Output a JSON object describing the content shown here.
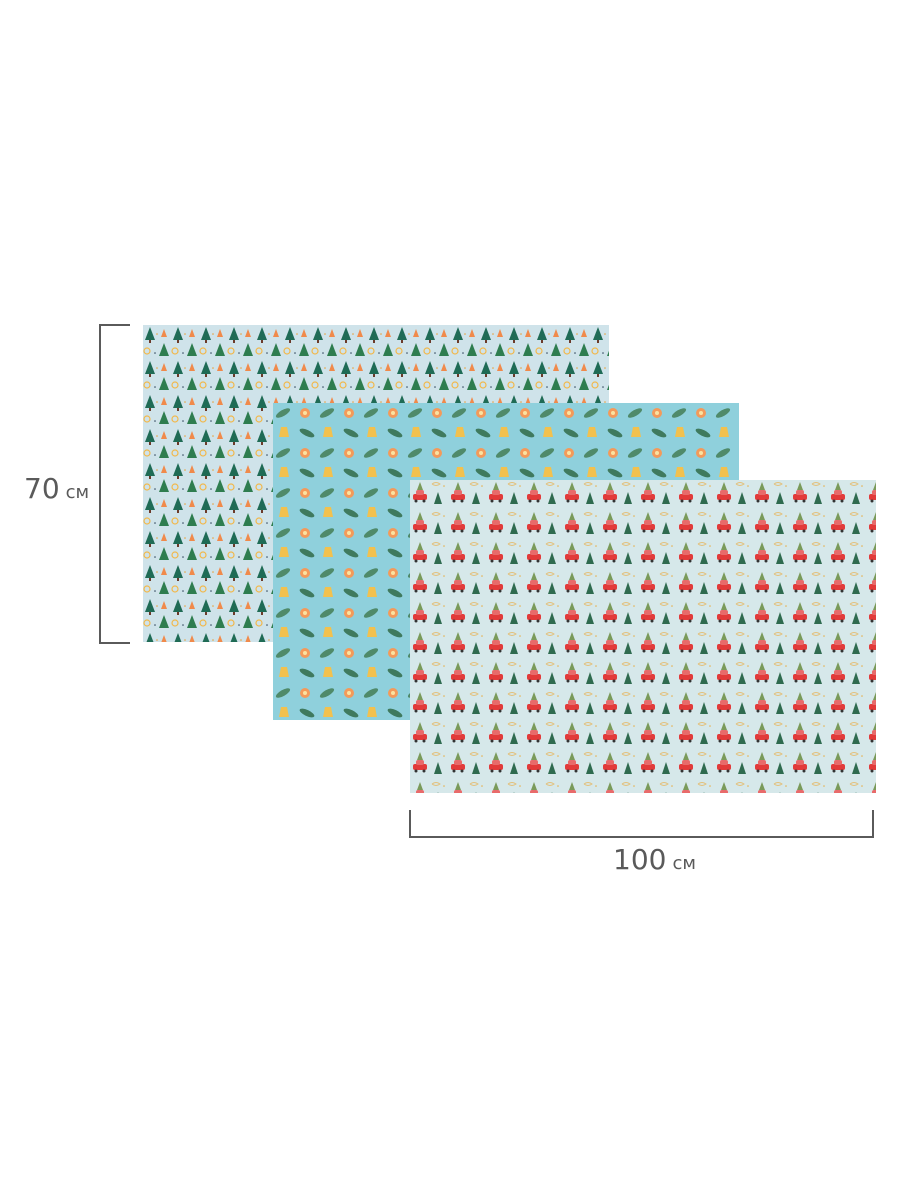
{
  "dimensions": {
    "height": {
      "value": "70",
      "unit": "см"
    },
    "width": {
      "value": "100",
      "unit": "см"
    }
  },
  "sheets": [
    {
      "pattern": "christmas-trees",
      "background": "#cfe3ea"
    },
    {
      "pattern": "ornaments-and-pine-branches",
      "background": "#8fd0dc"
    },
    {
      "pattern": "red-cars-with-trees",
      "background": "#d6e8ea"
    }
  ],
  "colors": {
    "dimension_line": "#5a5a5a"
  }
}
